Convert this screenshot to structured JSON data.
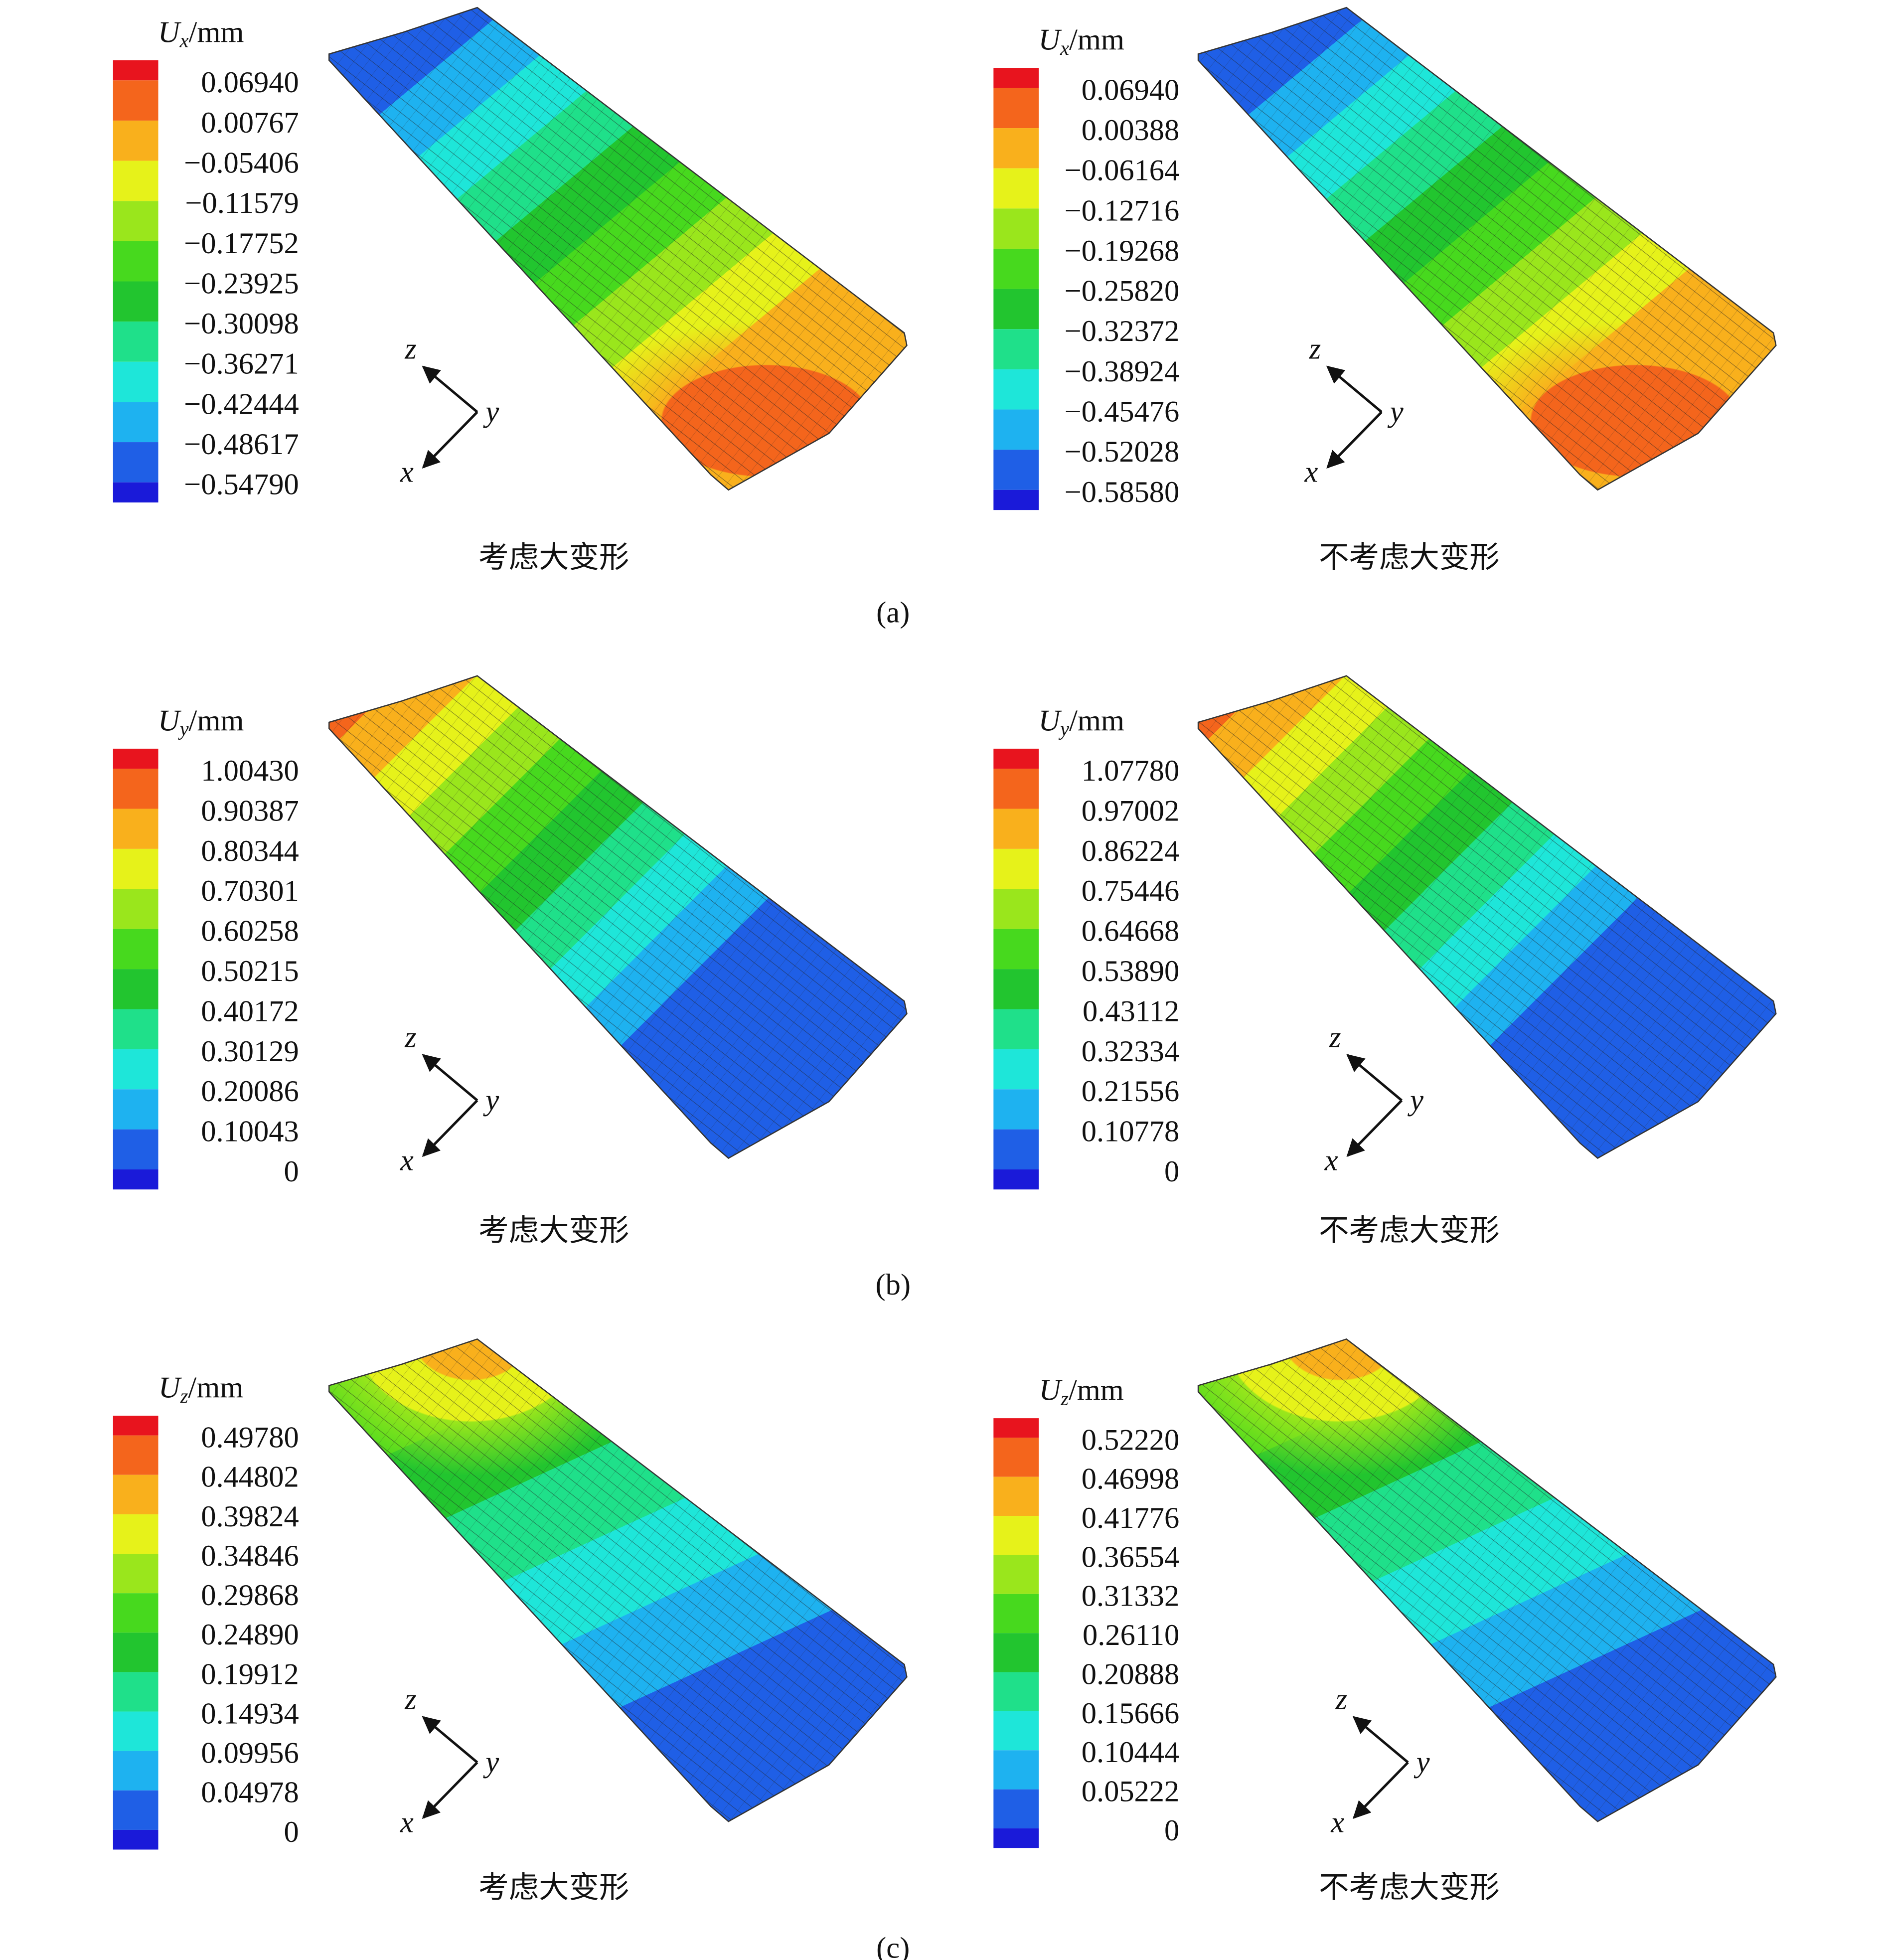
{
  "figure": {
    "rows": [
      {
        "label": "(a)",
        "panels": [
          {
            "legend_title": {
              "symbol": "U",
              "subscript": "x",
              "unit": "/mm"
            },
            "legend_labels": [
              "0.06940",
              "0.00767",
              "−0.05406",
              "−0.11579",
              "−0.17752",
              "−0.23925",
              "−0.30098",
              "−0.36271",
              "−0.42444",
              "−0.48617",
              "−0.54790"
            ],
            "caption": "考虑大变形"
          },
          {
            "legend_title": {
              "symbol": "U",
              "subscript": "x",
              "unit": "/mm"
            },
            "legend_labels": [
              "0.06940",
              "0.00388",
              "−0.06164",
              "−0.12716",
              "−0.19268",
              "−0.25820",
              "−0.32372",
              "−0.38924",
              "−0.45476",
              "−0.52028",
              "−0.58580"
            ],
            "caption": "不考虑大变形"
          }
        ]
      },
      {
        "label": "(b)",
        "panels": [
          {
            "legend_title": {
              "symbol": "U",
              "subscript": "y",
              "unit": "/mm"
            },
            "legend_labels": [
              "1.00430",
              "0.90387",
              "0.80344",
              "0.70301",
              "0.60258",
              "0.50215",
              "0.40172",
              "0.30129",
              "0.20086",
              "0.10043",
              "0"
            ],
            "caption": "考虑大变形"
          },
          {
            "legend_title": {
              "symbol": "U",
              "subscript": "y",
              "unit": "/mm"
            },
            "legend_labels": [
              "1.07780",
              "0.97002",
              "0.86224",
              "0.75446",
              "0.64668",
              "0.53890",
              "0.43112",
              "0.32334",
              "0.21556",
              "0.10778",
              "0"
            ],
            "caption": "不考虑大变形"
          }
        ]
      },
      {
        "label": "(c)",
        "panels": [
          {
            "legend_title": {
              "symbol": "U",
              "subscript": "z",
              "unit": "/mm"
            },
            "legend_labels": [
              "0.49780",
              "0.44802",
              "0.39824",
              "0.34846",
              "0.29868",
              "0.24890",
              "0.19912",
              "0.14934",
              "0.09956",
              "0.04978",
              "0"
            ],
            "caption": "考虑大变形"
          },
          {
            "legend_title": {
              "symbol": "U",
              "subscript": "z",
              "unit": "/mm"
            },
            "legend_labels": [
              "0.52220",
              "0.46998",
              "0.41776",
              "0.36554",
              "0.31332",
              "0.26110",
              "0.20888",
              "0.15666",
              "0.10444",
              "0.05222",
              "0"
            ],
            "caption": "不考虑大变形"
          }
        ]
      }
    ],
    "axis_labels": {
      "z": "z",
      "y": "y",
      "x": "x"
    },
    "legend_colors": [
      "#e8141e",
      "#f4651c",
      "#f9b01c",
      "#e6f21a",
      "#9ae61c",
      "#47d91e",
      "#22c52f",
      "#1fe08a",
      "#1ee6d9",
      "#1eb2f0",
      "#1f5fe6",
      "#1a1ad9"
    ]
  }
}
